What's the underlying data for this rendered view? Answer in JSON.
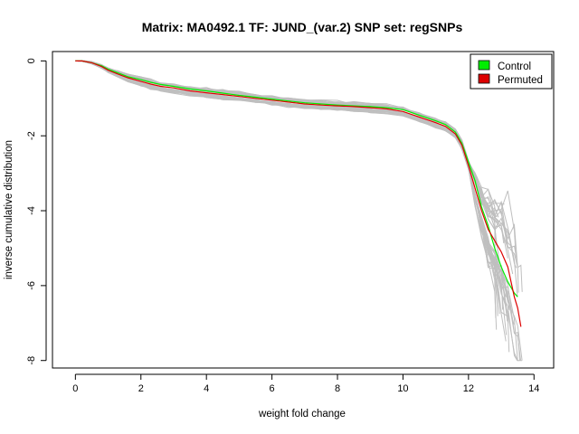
{
  "chart_data": {
    "type": "line",
    "title": "Matrix: MA0492.1 TF: JUND_(var.2) SNP set: regSNPs",
    "xlabel": "weight fold change",
    "ylabel": "inverse cumulative distribution",
    "xlim": [
      -0.7,
      14.6
    ],
    "ylim": [
      -8.2,
      0.25
    ],
    "x_ticks": [
      0,
      2,
      4,
      6,
      8,
      10,
      12,
      14
    ],
    "y_ticks": [
      0,
      -2,
      -4,
      -6,
      -8
    ],
    "grid": false,
    "legend_position": "top-right",
    "legend": [
      {
        "label": "Control",
        "color": "#00ee00"
      },
      {
        "label": "Permuted",
        "color": "#dd0000"
      }
    ],
    "series": [
      {
        "name": "Permuted",
        "color": "#dd0000",
        "x": [
          0,
          0.2,
          0.5,
          0.8,
          1.0,
          1.3,
          1.6,
          2.0,
          2.3,
          2.6,
          3.0,
          3.5,
          4.0,
          4.5,
          5.0,
          5.5,
          6.0,
          6.5,
          7.0,
          7.5,
          8.0,
          8.5,
          9.0,
          9.5,
          10.0,
          10.5,
          11.0,
          11.3,
          11.6,
          11.8,
          12.0,
          12.2,
          12.4,
          12.6,
          12.8,
          13.0,
          13.2,
          13.4,
          13.5,
          13.6
        ],
        "y": [
          0,
          0,
          -0.05,
          -0.15,
          -0.25,
          -0.35,
          -0.45,
          -0.55,
          -0.62,
          -0.68,
          -0.72,
          -0.8,
          -0.85,
          -0.9,
          -0.95,
          -1.0,
          -1.05,
          -1.1,
          -1.15,
          -1.18,
          -1.2,
          -1.22,
          -1.25,
          -1.28,
          -1.35,
          -1.5,
          -1.65,
          -1.75,
          -1.95,
          -2.25,
          -2.8,
          -3.4,
          -4.0,
          -4.5,
          -4.8,
          -5.1,
          -5.5,
          -6.3,
          -6.6,
          -7.1
        ]
      },
      {
        "name": "Control",
        "color": "#00ee00",
        "x": [
          0,
          0.2,
          0.5,
          0.8,
          1.0,
          1.3,
          1.6,
          2.0,
          2.3,
          2.6,
          3.0,
          3.5,
          4.0,
          4.5,
          5.0,
          5.5,
          6.0,
          6.5,
          7.0,
          7.5,
          8.0,
          8.5,
          9.0,
          9.5,
          10.0,
          10.5,
          11.0,
          11.3,
          11.6,
          11.8,
          12.0,
          12.2,
          12.4,
          12.6,
          12.8,
          13.0,
          13.2,
          13.4,
          13.5
        ],
        "y": [
          0,
          0,
          -0.05,
          -0.13,
          -0.22,
          -0.32,
          -0.42,
          -0.5,
          -0.57,
          -0.63,
          -0.68,
          -0.75,
          -0.8,
          -0.86,
          -0.92,
          -0.97,
          -1.02,
          -1.07,
          -1.12,
          -1.15,
          -1.18,
          -1.2,
          -1.22,
          -1.25,
          -1.3,
          -1.45,
          -1.6,
          -1.7,
          -1.9,
          -2.2,
          -2.7,
          -3.2,
          -3.9,
          -4.4,
          -5.0,
          -5.5,
          -5.9,
          -6.2,
          -6.3
        ]
      }
    ]
  }
}
